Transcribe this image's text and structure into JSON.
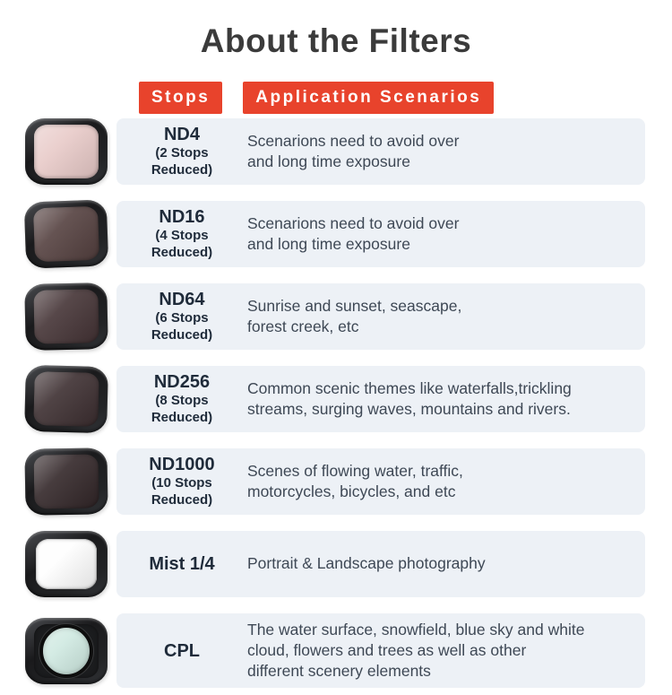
{
  "page": {
    "title": "About the Filters"
  },
  "header": {
    "stops_label": "Stops",
    "scenarios_label": "Application Scenarios"
  },
  "colors": {
    "accent_red": "#e8432c",
    "row_background": "#edf1f6",
    "label_text": "#1f2b3a",
    "description_text": "#3e4855"
  },
  "rows": [
    {
      "name": "ND4",
      "sub": "(2 Stops\nReduced)",
      "desc": "Scenarions need to avoid over\nand long time exposure",
      "lens_color": "#e8cac8"
    },
    {
      "name": "ND16",
      "sub": "(4 Stops\nReduced)",
      "desc": "Scenarions need to avoid over\nand long time exposure",
      "lens_color": "#54403f"
    },
    {
      "name": "ND64",
      "sub": "(6 Stops\nReduced)",
      "desc": "Sunrise and sunset, seascape,\nforest creek, etc",
      "lens_color": "#443335"
    },
    {
      "name": "ND256",
      "sub": "(8 Stops\nReduced)",
      "desc": "Common scenic themes like waterfalls,trickling\nstreams, surging waves, mountains and rivers.",
      "lens_color": "#3c2e30"
    },
    {
      "name": "ND1000",
      "sub": "(10 Stops\nReduced)",
      "desc": "Scenes of flowing water, traffic,\nmotorcycles, bicycles, and etc",
      "lens_color": "#322628"
    },
    {
      "name": "Mist 1/4",
      "sub": "",
      "desc": "Portrait & Landscape photography",
      "lens_color": "#fefefe"
    },
    {
      "name": "CPL",
      "sub": "",
      "desc": "The water surface, snowfield, blue sky and white\ncloud, flowers and trees as well as other\ndifferent scenery elements",
      "lens_color": "#cfe9e1"
    }
  ]
}
